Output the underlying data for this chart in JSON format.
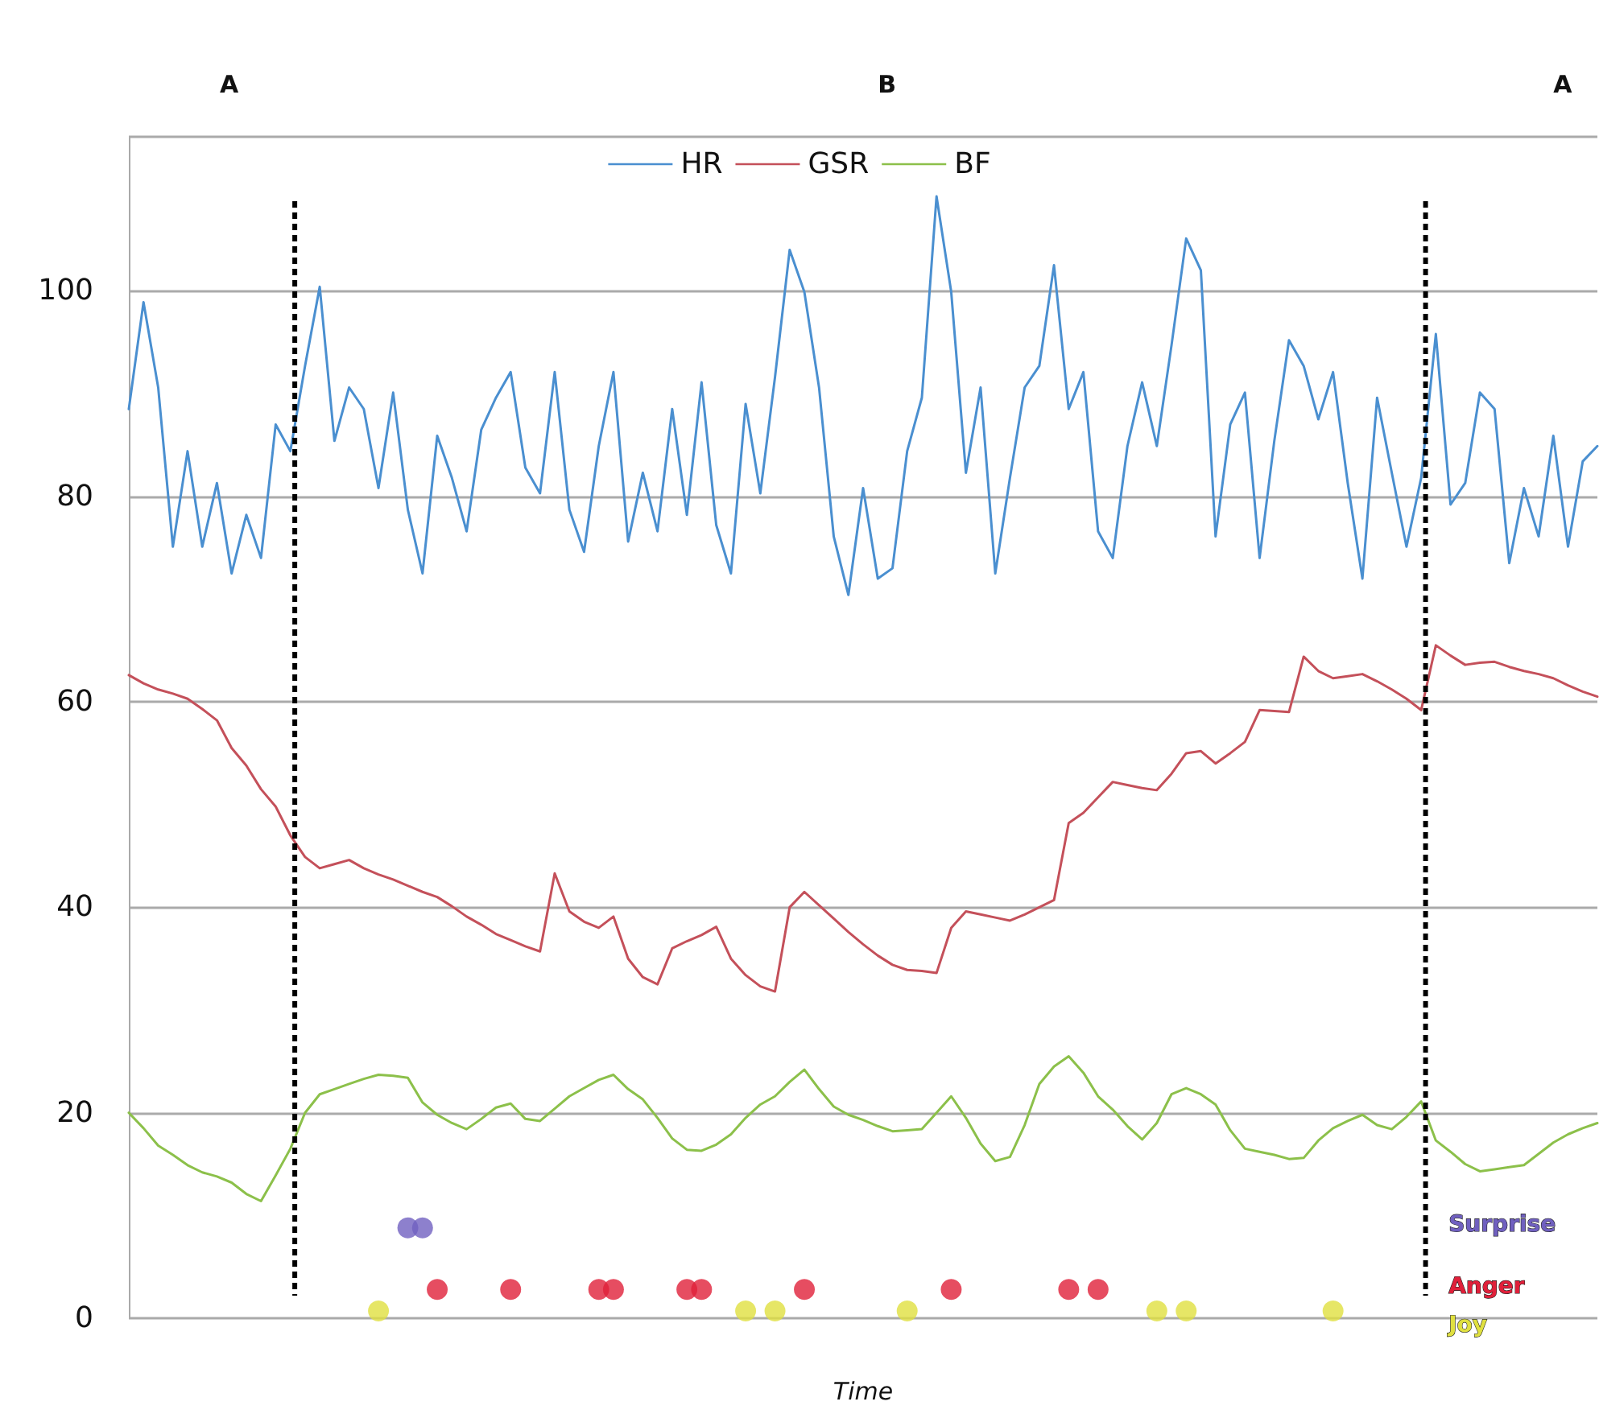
{
  "chart_data": {
    "type": "line",
    "xlabel": "Time",
    "ylim": [
      0,
      115
    ],
    "yticks": [
      0,
      20,
      40,
      60,
      80,
      100
    ],
    "grid": "y",
    "legend": "top",
    "tick_labels": "y",
    "marker": "none",
    "line_style": "solid",
    "categories": [
      null,
      null,
      null,
      null,
      null,
      null,
      null,
      null,
      null,
      null,
      null,
      null,
      null,
      null,
      null,
      null,
      null,
      null,
      null,
      null,
      null,
      null,
      null,
      null,
      null,
      null,
      null,
      null,
      null,
      null,
      null,
      null,
      null,
      null,
      null,
      null,
      null,
      null,
      null,
      null,
      null,
      null,
      null,
      null,
      null,
      null,
      null,
      null,
      null,
      null,
      null,
      null,
      null,
      null,
      null,
      null,
      null,
      null,
      null,
      null,
      null,
      null,
      null,
      null,
      null,
      null,
      null,
      null,
      null,
      null,
      null,
      null,
      null,
      null,
      null,
      null,
      null,
      null,
      null,
      null,
      null,
      null,
      null,
      null,
      null,
      null,
      null,
      null,
      null,
      null,
      null,
      null,
      null,
      null,
      null,
      null,
      null,
      null,
      null,
      null,
      null
    ],
    "series": [
      {
        "name": "HR",
        "color": "#4a8fd0",
        "values": [
          88.5,
          98.9,
          90.6,
          75.1,
          84.4,
          75.1,
          81.3,
          72.5,
          78.2,
          74,
          87,
          84.4,
          92.7,
          100.4,
          85.4,
          90.6,
          88.5,
          80.8,
          90.1,
          78.7,
          72.5,
          85.9,
          81.8,
          76.6,
          86.5,
          89.6,
          92.1,
          82.8,
          80.3,
          92.1,
          78.7,
          74.6,
          84.9,
          92.1,
          75.6,
          82.3,
          76.6,
          88.5,
          78.2,
          91.1,
          77.2,
          72.5,
          89,
          80.3,
          91.6,
          104,
          99.9,
          90.6,
          76.1,
          70.4,
          80.8,
          72,
          73,
          84.4,
          89.6,
          109.2,
          99.9,
          82.3,
          90.6,
          72.5,
          81.8,
          90.6,
          92.7,
          102.5,
          88.5,
          92.1,
          76.6,
          74,
          84.9,
          91.1,
          84.9,
          94.7,
          105.1,
          102,
          76.1,
          87,
          90.1,
          74,
          85.4,
          95.2,
          92.7,
          87.5,
          92.1,
          81.3,
          72,
          89.6,
          82.3,
          75.1,
          81.8,
          95.8,
          79.2,
          81.3,
          90.1,
          88.5,
          73.5,
          80.8,
          76.1,
          85.9,
          75.1,
          83.4,
          84.9
        ]
      },
      {
        "name": "GSR",
        "color": "#c4505a",
        "values": [
          62.6,
          61.8,
          61.2,
          60.8,
          60.3,
          59.3,
          58.2,
          55.5,
          53.8,
          51.5,
          49.8,
          47.0,
          44.9,
          43.8,
          44.2,
          44.6,
          43.8,
          43.2,
          42.7,
          42.1,
          41.5,
          41.0,
          40.1,
          39.1,
          38.3,
          37.4,
          36.8,
          36.2,
          35.7,
          43.3,
          39.6,
          38.6,
          38.0,
          39.1,
          35.0,
          33.2,
          32.5,
          36.0,
          36.7,
          37.3,
          38.1,
          35.0,
          33.4,
          32.3,
          31.8,
          40.0,
          41.5,
          40.2,
          38.9,
          37.6,
          36.4,
          35.3,
          34.4,
          33.9,
          33.8,
          33.6,
          38.0,
          39.6,
          39.3,
          39.0,
          38.7,
          39.3,
          40.0,
          40.7,
          48.2,
          49.2,
          50.7,
          52.2,
          51.9,
          51.6,
          51.4,
          53.0,
          55.0,
          55.2,
          54.0,
          55.0,
          56.1,
          59.2,
          59.1,
          59.0,
          64.4,
          63.0,
          62.3,
          62.5,
          62.7,
          62.0,
          61.2,
          60.3,
          59.2,
          65.5,
          64.5,
          63.6,
          63.8,
          63.9,
          63.4,
          63.0,
          62.7,
          62.3,
          61.6,
          61.0,
          60.5
        ]
      },
      {
        "name": "BF",
        "color": "#8cc04a",
        "values": [
          20.0,
          18.5,
          16.8,
          15.9,
          14.9,
          14.2,
          13.8,
          13.2,
          12.1,
          11.4,
          13.9,
          16.5,
          20.0,
          21.8,
          22.3,
          22.8,
          23.3,
          23.7,
          23.6,
          23.4,
          21.0,
          19.8,
          19.0,
          18.4,
          19.4,
          20.5,
          20.9,
          19.4,
          19.2,
          20.4,
          21.6,
          22.4,
          23.2,
          23.7,
          22.3,
          21.3,
          19.5,
          17.5,
          16.4,
          16.3,
          16.9,
          17.9,
          19.5,
          20.8,
          21.6,
          23.0,
          24.2,
          22.3,
          20.6,
          19.8,
          19.3,
          18.7,
          18.2,
          18.3,
          18.4,
          20.0,
          21.6,
          19.5,
          17.0,
          15.3,
          15.7,
          18.8,
          22.8,
          24.5,
          25.5,
          23.9,
          21.6,
          20.3,
          18.7,
          17.4,
          19.0,
          21.8,
          22.4,
          21.8,
          20.8,
          18.3,
          16.5,
          16.2,
          15.9,
          15.5,
          15.6,
          17.3,
          18.5,
          19.2,
          19.8,
          18.8,
          18.4,
          19.6,
          21.1,
          17.3,
          16.2,
          15.0,
          14.3,
          14.5,
          14.7,
          14.9,
          16.0,
          17.1,
          17.9,
          18.5,
          19.0
        ]
      },
      {
        "name": "Surprise",
        "type": "scatter",
        "marker": "circle",
        "color": "#7060c0",
        "values": [
          null,
          null,
          null,
          null,
          null,
          null,
          null,
          null,
          null,
          null,
          null,
          null,
          null,
          null,
          null,
          null,
          null,
          null,
          null,
          8.8,
          8.8,
          null,
          null,
          null,
          null,
          null,
          null,
          null,
          null,
          null,
          null,
          null,
          null,
          null,
          null,
          null,
          null,
          null,
          null,
          null,
          null,
          null,
          null,
          null,
          null,
          null,
          null,
          null,
          null,
          null,
          null,
          null,
          null,
          null,
          null,
          null,
          null,
          null,
          null,
          null,
          null,
          null,
          null,
          null,
          null,
          null,
          null,
          null,
          null,
          null,
          null,
          null,
          null,
          null,
          null,
          null,
          null,
          null,
          null,
          null,
          null,
          null,
          null,
          null,
          null,
          null,
          null,
          null,
          null,
          null,
          null,
          null,
          null,
          null,
          null,
          null,
          null,
          null,
          null,
          null,
          null
        ]
      },
      {
        "name": "Anger",
        "type": "scatter",
        "marker": "circle",
        "color": "#e0203a",
        "values": [
          null,
          null,
          null,
          null,
          null,
          null,
          null,
          null,
          null,
          null,
          null,
          null,
          null,
          null,
          null,
          null,
          null,
          null,
          null,
          null,
          null,
          2.8,
          null,
          null,
          null,
          null,
          2.8,
          null,
          null,
          null,
          null,
          null,
          2.8,
          2.8,
          null,
          null,
          null,
          null,
          2.8,
          2.8,
          null,
          null,
          null,
          null,
          null,
          null,
          2.8,
          null,
          null,
          null,
          null,
          null,
          null,
          null,
          null,
          null,
          2.8,
          null,
          null,
          null,
          null,
          null,
          null,
          null,
          2.8,
          null,
          2.8,
          null,
          null,
          null,
          null,
          null,
          null,
          null,
          null,
          null,
          null,
          null,
          null,
          null,
          null,
          null,
          null,
          null,
          null,
          null,
          null,
          null,
          null,
          null,
          null,
          null,
          null,
          null,
          null,
          null,
          null,
          null,
          null,
          null,
          null
        ]
      },
      {
        "name": "Joy",
        "type": "scatter",
        "marker": "circle",
        "color": "#e0e040",
        "values": [
          null,
          null,
          null,
          null,
          null,
          null,
          null,
          null,
          null,
          null,
          null,
          null,
          null,
          null,
          null,
          null,
          null,
          0.7,
          null,
          null,
          null,
          null,
          null,
          null,
          null,
          null,
          null,
          null,
          null,
          null,
          null,
          null,
          null,
          null,
          null,
          null,
          null,
          null,
          null,
          null,
          null,
          null,
          0.7,
          null,
          0.7,
          null,
          null,
          null,
          null,
          null,
          null,
          null,
          null,
          0.7,
          null,
          null,
          null,
          null,
          null,
          null,
          null,
          null,
          null,
          null,
          null,
          null,
          null,
          null,
          null,
          null,
          0.7,
          null,
          0.7,
          null,
          null,
          null,
          null,
          null,
          null,
          null,
          null,
          null,
          0.7,
          null,
          null,
          null,
          null,
          null,
          null,
          null,
          null,
          null,
          null,
          null,
          null,
          null,
          null,
          null,
          null,
          null,
          null
        ]
      }
    ],
    "annotations": [
      "A",
      "B",
      "A"
    ]
  }
}
